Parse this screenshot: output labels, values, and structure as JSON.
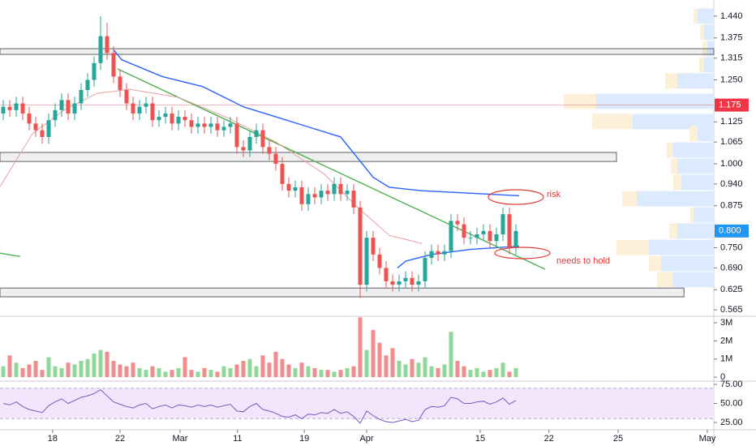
{
  "chart_data": [
    {
      "type": "candlestick",
      "xlim": [
        -0.5,
        109.5
      ],
      "xticks": [
        {
          "value": 7.6,
          "label": "18"
        },
        {
          "value": 18,
          "label": "22"
        },
        {
          "value": 27.25,
          "label": "Mar"
        },
        {
          "value": 36.1,
          "label": "11"
        },
        {
          "value": 46.4,
          "label": "19"
        },
        {
          "value": 56,
          "label": "Apr"
        },
        {
          "value": 73.5,
          "label": "15"
        },
        {
          "value": 84.1,
          "label": "22"
        },
        {
          "value": 94.75,
          "label": "25"
        },
        {
          "value": 108.5,
          "label": "May"
        }
      ],
      "ylim": [
        0.546,
        1.488
      ],
      "yticks": [
        {
          "value": 1.44,
          "label": "1.440"
        },
        {
          "value": 1.375,
          "label": "1.375"
        },
        {
          "value": 1.315,
          "label": "1.315"
        },
        {
          "value": 1.25,
          "label": "1.250"
        },
        {
          "value": 1.125,
          "label": "1.125"
        },
        {
          "value": 1.065,
          "label": "1.065"
        },
        {
          "value": 1.0,
          "label": "1.000"
        },
        {
          "value": 0.94,
          "label": "0.940"
        },
        {
          "value": 0.875,
          "label": "0.875"
        },
        {
          "value": 0.75,
          "label": "0.750"
        },
        {
          "value": 0.69,
          "label": "0.690"
        },
        {
          "value": 0.625,
          "label": "0.625"
        },
        {
          "value": 0.565,
          "label": "0.565"
        }
      ],
      "up_color": "#26a69a",
      "down_color": "#ef5350",
      "x": [
        0,
        1,
        2,
        3,
        4,
        5,
        6,
        7,
        8,
        9,
        10,
        11,
        12,
        13,
        14,
        15,
        16,
        17,
        18,
        19,
        20,
        21,
        22,
        23,
        24,
        25,
        26,
        27,
        28,
        29,
        30,
        31,
        32,
        33,
        34,
        35,
        36,
        37,
        38,
        39,
        40,
        41,
        42,
        43,
        44,
        45,
        46,
        47,
        48,
        49,
        50,
        51,
        52,
        53,
        54,
        55,
        56,
        57,
        58,
        59,
        60,
        61,
        62,
        63,
        64,
        65,
        66,
        67,
        68,
        69,
        70,
        71,
        72,
        73,
        74,
        75,
        76,
        77,
        78,
        79
      ],
      "open": [
        1.15,
        1.17,
        1.16,
        1.18,
        1.15,
        1.12,
        1.1,
        1.08,
        1.13,
        1.16,
        1.19,
        1.15,
        1.18,
        1.22,
        1.25,
        1.3,
        1.38,
        1.33,
        1.26,
        1.22,
        1.18,
        1.15,
        1.17,
        1.18,
        1.13,
        1.14,
        1.15,
        1.12,
        1.14,
        1.13,
        1.11,
        1.12,
        1.11,
        1.12,
        1.1,
        1.11,
        1.12,
        1.05,
        1.04,
        1.08,
        1.1,
        1.05,
        1.03,
        1.0,
        0.94,
        0.92,
        0.93,
        0.88,
        0.91,
        0.9,
        0.92,
        0.91,
        0.94,
        0.91,
        0.92,
        0.87,
        0.64,
        0.78,
        0.73,
        0.69,
        0.65,
        0.64,
        0.65,
        0.66,
        0.64,
        0.65,
        0.72,
        0.74,
        0.73,
        0.74,
        0.83,
        0.82,
        0.78,
        0.78,
        0.79,
        0.8,
        0.77,
        0.79,
        0.85,
        0.75
      ],
      "high": [
        1.19,
        1.19,
        1.2,
        1.2,
        1.17,
        1.14,
        1.12,
        1.15,
        1.18,
        1.21,
        1.21,
        1.2,
        1.24,
        1.27,
        1.32,
        1.44,
        1.42,
        1.35,
        1.28,
        1.24,
        1.2,
        1.19,
        1.2,
        1.2,
        1.16,
        1.17,
        1.17,
        1.16,
        1.16,
        1.15,
        1.14,
        1.14,
        1.14,
        1.14,
        1.13,
        1.14,
        1.14,
        1.07,
        1.1,
        1.12,
        1.12,
        1.07,
        1.05,
        1.02,
        0.96,
        0.95,
        0.95,
        0.93,
        0.93,
        0.94,
        0.94,
        0.96,
        0.96,
        0.94,
        0.94,
        0.89,
        0.8,
        0.8,
        0.75,
        0.71,
        0.67,
        0.67,
        0.68,
        0.68,
        0.67,
        0.74,
        0.76,
        0.76,
        0.76,
        0.85,
        0.85,
        0.84,
        0.8,
        0.81,
        0.82,
        0.82,
        0.81,
        0.87,
        0.87,
        0.82
      ],
      "low": [
        1.13,
        1.14,
        1.14,
        1.13,
        1.1,
        1.08,
        1.06,
        1.06,
        1.11,
        1.14,
        1.13,
        1.13,
        1.16,
        1.2,
        1.23,
        1.28,
        1.31,
        1.24,
        1.2,
        1.16,
        1.13,
        1.13,
        1.15,
        1.11,
        1.11,
        1.12,
        1.1,
        1.1,
        1.11,
        1.09,
        1.09,
        1.09,
        1.09,
        1.08,
        1.08,
        1.09,
        1.03,
        1.02,
        1.02,
        1.06,
        1.03,
        1.01,
        0.98,
        0.92,
        0.9,
        0.9,
        0.86,
        0.86,
        0.88,
        0.88,
        0.89,
        0.89,
        0.89,
        0.89,
        0.85,
        0.6,
        0.62,
        0.71,
        0.67,
        0.63,
        0.62,
        0.62,
        0.63,
        0.62,
        0.62,
        0.63,
        0.7,
        0.71,
        0.71,
        0.72,
        0.8,
        0.76,
        0.76,
        0.76,
        0.77,
        0.75,
        0.75,
        0.77,
        0.73,
        0.73
      ],
      "close": [
        1.17,
        1.16,
        1.18,
        1.15,
        1.12,
        1.1,
        1.08,
        1.13,
        1.16,
        1.19,
        1.15,
        1.18,
        1.22,
        1.25,
        1.3,
        1.38,
        1.33,
        1.26,
        1.22,
        1.18,
        1.15,
        1.17,
        1.18,
        1.13,
        1.14,
        1.15,
        1.12,
        1.14,
        1.13,
        1.11,
        1.12,
        1.11,
        1.12,
        1.1,
        1.11,
        1.12,
        1.05,
        1.04,
        1.08,
        1.1,
        1.05,
        1.03,
        1.0,
        0.94,
        0.92,
        0.93,
        0.88,
        0.91,
        0.9,
        0.92,
        0.91,
        0.94,
        0.91,
        0.92,
        0.87,
        0.64,
        0.78,
        0.73,
        0.69,
        0.65,
        0.64,
        0.65,
        0.66,
        0.64,
        0.65,
        0.72,
        0.74,
        0.73,
        0.74,
        0.83,
        0.82,
        0.78,
        0.78,
        0.79,
        0.8,
        0.77,
        0.79,
        0.85,
        0.75,
        0.8
      ],
      "lines": [
        {
          "color": "#2962ff",
          "x": [
            17,
            18.25,
            24.5,
            30.75,
            37,
            42,
            47,
            52,
            54.5,
            57,
            59.5,
            64.5,
            74.5,
            79.5
          ],
          "values": [
            1.34,
            1.31,
            1.26,
            1.23,
            1.17,
            1.14,
            1.11,
            1.08,
            1.02,
            0.96,
            0.93,
            0.92,
            0.91,
            0.905
          ]
        },
        {
          "color": "#2962ff",
          "x": [
            60.75,
            62,
            66,
            72,
            79.5
          ],
          "values": [
            0.69,
            0.71,
            0.73,
            0.745,
            0.755
          ]
        },
        {
          "color": "#4caf50",
          "x": [
            17.6,
            83.5
          ],
          "values": [
            1.283,
            0.686
          ]
        },
        {
          "color": "#e8a0a0",
          "x": [
            -0.5,
            4.5,
            9.5,
            14.5,
            19.5,
            27,
            34.5,
            42,
            49.5,
            54.5,
            59.5,
            64.5
          ],
          "values": [
            0.932,
            1.09,
            1.162,
            1.21,
            1.222,
            1.198,
            1.138,
            1.065,
            0.969,
            0.872,
            0.787,
            0.763
          ]
        },
        {
          "color": "#4caf50",
          "x": [
            -0.5,
            2.6
          ],
          "values": [
            0.734,
            0.724
          ]
        }
      ],
      "zones": [
        {
          "range": [
            1.326,
            1.343
          ],
          "x_end": 109.5
        },
        {
          "range": [
            1.007,
            1.034
          ],
          "x_end": 94.5
        },
        {
          "range": [
            0.604,
            0.63
          ],
          "x_end": 104.9
        }
      ],
      "price_labels": [
        {
          "value": 1.175,
          "label": "1.175",
          "color": "#f23645",
          "line": true
        },
        {
          "value": 0.8,
          "label": "0.800",
          "color": "#2196f3",
          "line": false
        }
      ],
      "annotations": [
        {
          "text": "risk"
        },
        {
          "text": "needs to hold"
        }
      ],
      "profile": {
        "prices": [
          1.44,
          1.392,
          1.343,
          1.295,
          1.247,
          1.186,
          1.126,
          1.09,
          1.041,
          0.993,
          0.945,
          0.896,
          0.848,
          0.8,
          0.751,
          0.703,
          0.655
        ],
        "up": [
          20,
          12,
          8,
          12,
          45,
          145,
          100,
          20,
          50,
          45,
          40,
          95,
          25,
          45,
          80,
          65,
          50
        ],
        "down": [
          5,
          5,
          6,
          6,
          15,
          40,
          50,
          10,
          8,
          8,
          10,
          18,
          4,
          10,
          40,
          15,
          20
        ],
        "up_color": "#dbeafc",
        "down_color": "#fdf0d8"
      }
    },
    {
      "type": "bar",
      "ylim": [
        -220000,
        3360000
      ],
      "yticks": [
        0,
        {
          "value": 1000000,
          "label": "1M"
        },
        {
          "value": 2000000,
          "label": "2M"
        },
        {
          "value": 3000000,
          "label": "3M"
        }
      ],
      "up_color": "#8fd89a",
      "down_color": "#f28b8b",
      "values": [
        600000,
        1200000,
        800000,
        500000,
        700000,
        900000,
        400000,
        1100000,
        600000,
        500000,
        800000,
        700000,
        900000,
        1000000,
        1300000,
        1500000,
        1400000,
        900000,
        700000,
        600000,
        800000,
        500000,
        400000,
        600000,
        500000,
        300000,
        400000,
        500000,
        1100000,
        400000,
        300000,
        500000,
        400000,
        300000,
        600000,
        500000,
        700000,
        900000,
        1000000,
        600000,
        1200000,
        800000,
        1400000,
        1000000,
        700000,
        500000,
        800000,
        600000,
        500000,
        400000,
        400000,
        300000,
        400000,
        500000,
        600000,
        3300000,
        1500000,
        2600000,
        1900000,
        1200000,
        1600000,
        900000,
        700000,
        1000000,
        800000,
        1100000,
        600000,
        500000,
        700000,
        2500000,
        900000,
        600000,
        400000,
        500000,
        300000,
        400000,
        500000,
        800000,
        300000,
        500000
      ]
    },
    {
      "type": "line",
      "ylim": [
        15.4,
        79.3
      ],
      "yticks": [
        {
          "value": 75,
          "label": "75.00"
        },
        {
          "value": 50,
          "label": "50.00"
        },
        {
          "value": 25,
          "label": "25.00"
        }
      ],
      "band": [
        30,
        70
      ],
      "color": "#7e57c2",
      "band_color": "#f1e6fb",
      "values": [
        50,
        48,
        52,
        46,
        42,
        40,
        38,
        47,
        52,
        56,
        50,
        54,
        58,
        60,
        63,
        68,
        60,
        52,
        49,
        46,
        44,
        48,
        50,
        43,
        46,
        48,
        44,
        48,
        47,
        45,
        48,
        46,
        48,
        45,
        47,
        49,
        40,
        39,
        46,
        50,
        42,
        40,
        37,
        33,
        32,
        35,
        30,
        36,
        35,
        38,
        37,
        42,
        37,
        39,
        33,
        24,
        40,
        34,
        29,
        26,
        25,
        27,
        29,
        26,
        28,
        42,
        46,
        45,
        47,
        58,
        56,
        50,
        50,
        52,
        53,
        49,
        52,
        57,
        49,
        54
      ]
    }
  ]
}
